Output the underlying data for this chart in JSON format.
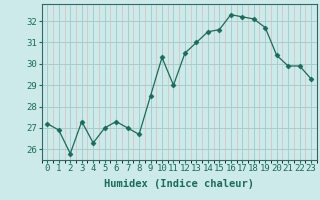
{
  "x": [
    0,
    1,
    2,
    3,
    4,
    5,
    6,
    7,
    8,
    9,
    10,
    11,
    12,
    13,
    14,
    15,
    16,
    17,
    18,
    19,
    20,
    21,
    22,
    23
  ],
  "y": [
    27.2,
    26.9,
    25.8,
    27.3,
    26.3,
    27.0,
    27.3,
    27.0,
    26.7,
    28.5,
    30.3,
    29.0,
    30.5,
    31.0,
    31.5,
    31.6,
    32.3,
    32.2,
    32.1,
    31.7,
    30.4,
    29.9,
    29.9,
    29.3
  ],
  "line_color": "#1a6b5a",
  "marker": "D",
  "marker_size": 2.5,
  "bg_color": "#cceaea",
  "grid_major_color": "#aacccc",
  "grid_minor_color": "#ddbbbb",
  "spine_color": "#336666",
  "xlabel": "Humidex (Indice chaleur)",
  "ylabel": "",
  "ylim": [
    25.5,
    32.8
  ],
  "yticks": [
    26,
    27,
    28,
    29,
    30,
    31,
    32
  ],
  "xticks": [
    0,
    1,
    2,
    3,
    4,
    5,
    6,
    7,
    8,
    9,
    10,
    11,
    12,
    13,
    14,
    15,
    16,
    17,
    18,
    19,
    20,
    21,
    22,
    23
  ],
  "xlabel_fontsize": 7.5,
  "tick_fontsize": 6.5,
  "tick_color": "#1a6b5a",
  "label_color": "#1a6b5a"
}
